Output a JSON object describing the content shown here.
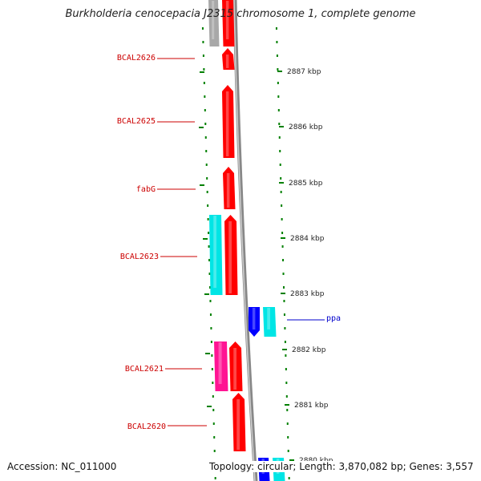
{
  "title": "Burkholderia cenocepacia J2315 chromosome 1, complete genome",
  "footer": {
    "accession": "Accession: NC_011000",
    "summary": "Topology: circular; Length: 3,870,082 bp; Genes: 3,557"
  },
  "colors": {
    "forward_gene": "#ff0000",
    "reverse_gene": "#00e5e5",
    "pink_gene": "#ff1493",
    "blue_gene": "#0000ff",
    "pseudo_gene": "#a8a8a8",
    "scale_tick": "#008000",
    "backbone": "#888888",
    "gene_label": "#cc0000",
    "blue_label": "#0000cc"
  },
  "scale_ticks": [
    "2887 kbp",
    "2886 kbp",
    "2885 kbp",
    "2884 kbp",
    "2883 kbp",
    "2882 kbp",
    "2881 kbp",
    "2880 kbp"
  ],
  "gene_labels": [
    {
      "text": "BCAL2626",
      "color": "red"
    },
    {
      "text": "BCAL2625",
      "color": "red"
    },
    {
      "text": "fabG",
      "color": "red"
    },
    {
      "text": "BCAL2623",
      "color": "red"
    },
    {
      "text": "ppa",
      "color": "blue"
    },
    {
      "text": "BCAL2621",
      "color": "red"
    },
    {
      "text": "BCAL2620",
      "color": "red"
    }
  ]
}
